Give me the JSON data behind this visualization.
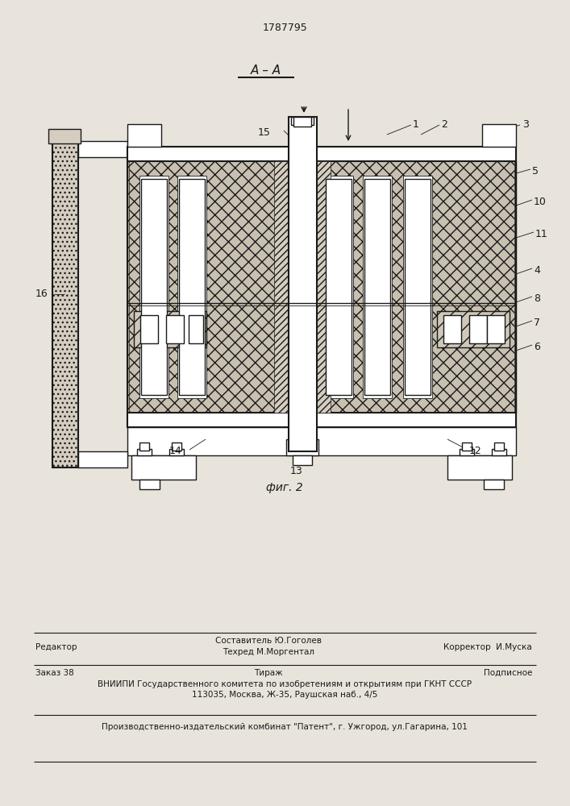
{
  "patent_number": "1787795",
  "section_label": "А – А",
  "figure_label": "фиг. 2",
  "bg_color": "#e8e4dc",
  "lc": "#1a1a1a",
  "footer": {
    "editor": "Редактор",
    "line1a": "Составитель Ю.Гоголев",
    "line1b": "Техред М.Моргентал",
    "line1c": "Корректор  И.Муска",
    "order": "Заказ 38",
    "tirazh": "Тираж",
    "podpisnoe": "Подписное",
    "vniipи": "ВНИИПИ Государственного комитета по изобретениям и открытиям при ГКНТ СССР",
    "addr": "113035, Москва, Ж-35, Раушская наб., 4/5",
    "patent_firm": "Производственно-издательский комбинат \"Патент\", г. Ужгород, ул.Гагарина, 101"
  }
}
